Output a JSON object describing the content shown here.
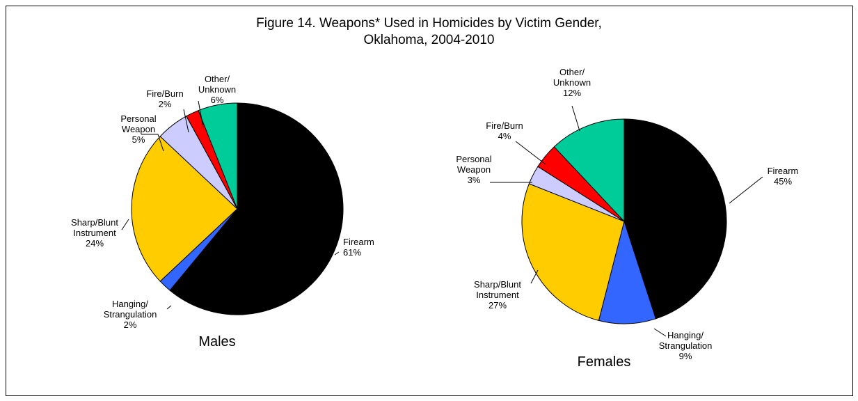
{
  "chart_data": {
    "type": "pie",
    "title": "Figure 14. Weapons* Used in Homicides by Victim Gender,",
    "subtitle": "Oklahoma, 2004-2010",
    "categories": [
      "Firearm",
      "Hanging/ Strangulation",
      "Sharp/Blunt Instrument",
      "Personal Weapon",
      "Fire/Burn",
      "Other/ Unknown"
    ],
    "colors": [
      "#000000",
      "#3366ff",
      "#ffcc00",
      "#ccccff",
      "#ff0000",
      "#00cc99"
    ],
    "series": [
      {
        "name": "Males",
        "values": [
          61,
          2,
          24,
          5,
          2,
          6
        ],
        "labels": [
          [
            "Firearm",
            "61%"
          ],
          [
            "Hanging/",
            "Strangulation",
            "2%"
          ],
          [
            "Sharp/Blunt",
            "Instrument",
            "24%"
          ],
          [
            "Personal",
            "Weapon",
            "5%"
          ],
          [
            "Fire/Burn",
            "2%"
          ],
          [
            "Other/",
            "Unknown",
            "6%"
          ]
        ]
      },
      {
        "name": "Females",
        "values": [
          45,
          9,
          27,
          3,
          4,
          12
        ],
        "labels": [
          [
            "Firearm",
            "45%"
          ],
          [
            "Hanging/",
            "Strangulation",
            "9%"
          ],
          [
            "Sharp/Blunt",
            "Instrument",
            "27%"
          ],
          [
            "Personal",
            "Weapon",
            "3%"
          ],
          [
            "Fire/Burn",
            "4%"
          ],
          [
            "Other/",
            "Unknown",
            "12%"
          ]
        ]
      }
    ]
  }
}
